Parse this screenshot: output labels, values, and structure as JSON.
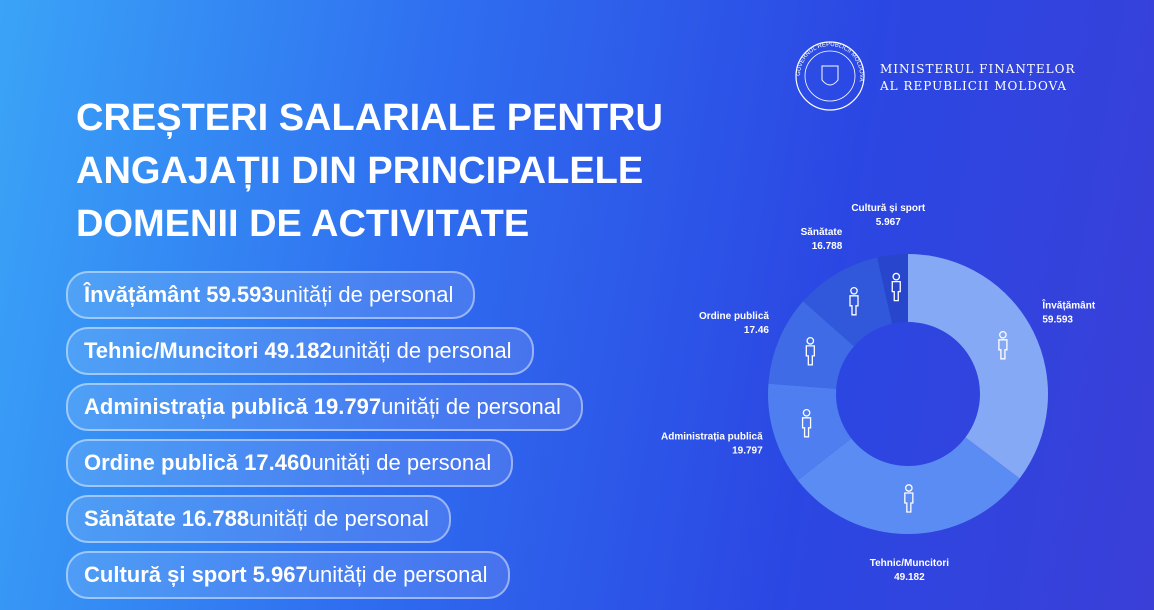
{
  "header": {
    "ministry_line1": "MINISTERUL FINANȚELOR",
    "ministry_line2": "AL REPUBLICII MOLDOVA",
    "emblem_text": "GUVERNUL REPUBLICII MOLDOVA",
    "title_lines": [
      "CREȘTERI SALARIALE PENTRU",
      "ANGAJAȚII DIN PRINCIPALELE",
      "DOMENII DE ACTIVITATE"
    ]
  },
  "list": [
    {
      "name": "Învățământ 59.593",
      "unit": "unități de personal"
    },
    {
      "name": "Tehnic/Muncitori 49.182",
      "unit": "unități de personal"
    },
    {
      "name": "Administrația publică 19.797",
      "unit": "unități de personal"
    },
    {
      "name": "Ordine publică 17.460",
      "unit": "unități de personal"
    },
    {
      "name": "Sănătate 16.788",
      "unit": "unități de personal"
    },
    {
      "name": "Cultură și sport 5.967",
      "unit": "unități de personal"
    }
  ],
  "chart_data": {
    "type": "pie",
    "donut": true,
    "categories": [
      "Învățământ",
      "Tehnic/Muncitori",
      "Administrația publică",
      "Ordine publică",
      "Sănătate",
      "Cultură și sport"
    ],
    "values": [
      59.593,
      49.182,
      19.797,
      17.46,
      16.788,
      5.967
    ],
    "colors": [
      "#86a9f6",
      "#5b8cf3",
      "#4e7ef0",
      "#3f6be6",
      "#3158da",
      "#2746cc"
    ]
  }
}
